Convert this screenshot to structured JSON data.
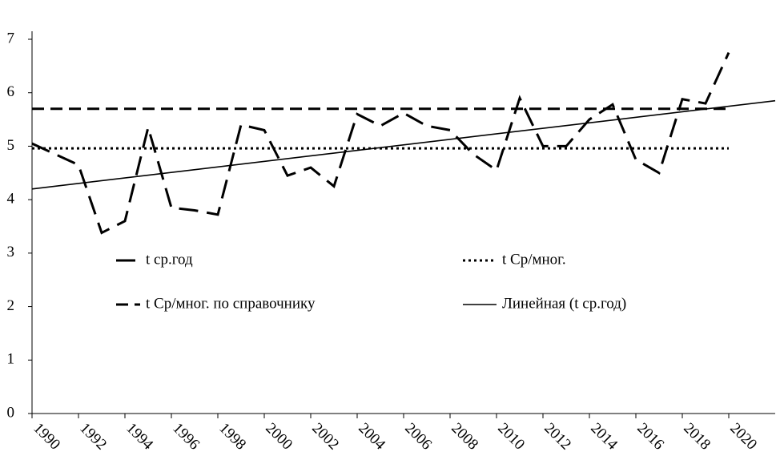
{
  "chart_data": {
    "type": "line",
    "x": [
      1990,
      1991,
      1992,
      1993,
      1994,
      1995,
      1996,
      1997,
      1998,
      1999,
      2000,
      2001,
      2002,
      2003,
      2004,
      2005,
      2006,
      2007,
      2008,
      2009,
      2010,
      2011,
      2012,
      2013,
      2014,
      2015,
      2016,
      2017,
      2018,
      2019,
      2020
    ],
    "series": [
      {
        "name": "t ср.год",
        "color": "#000000",
        "style": "long-dash",
        "values": [
          5.05,
          4.85,
          4.65,
          3.38,
          3.6,
          5.35,
          3.85,
          3.8,
          3.72,
          5.4,
          5.3,
          4.45,
          4.6,
          4.25,
          5.6,
          5.38,
          5.62,
          5.38,
          5.3,
          4.85,
          4.55,
          5.9,
          5.0,
          5.0,
          5.5,
          5.78,
          4.75,
          4.5,
          5.88,
          5.8,
          6.75
        ]
      },
      {
        "name": "t Ср/мног.",
        "color": "#000000",
        "style": "dotted",
        "x": [
          1990,
          2020
        ],
        "values": [
          4.96,
          4.96
        ]
      },
      {
        "name": "t Ср/мног. по справочнику",
        "color": "#000000",
        "style": "dashed",
        "x": [
          1990,
          2020
        ],
        "values": [
          5.7,
          5.7
        ]
      },
      {
        "name": "Линейная (t ср.год)",
        "color": "#000000",
        "style": "solid",
        "x": [
          1990,
          2022
        ],
        "values": [
          4.2,
          5.85
        ]
      }
    ],
    "xlim": [
      1990,
      2022
    ],
    "xticks": [
      1990,
      1992,
      1994,
      1996,
      1998,
      2000,
      2002,
      2004,
      2006,
      2008,
      2010,
      2012,
      2014,
      2016,
      2018,
      2020
    ],
    "ylim": [
      0,
      7
    ],
    "yticks": [
      0,
      1,
      2,
      3,
      4,
      5,
      6,
      7
    ],
    "grid": false
  }
}
